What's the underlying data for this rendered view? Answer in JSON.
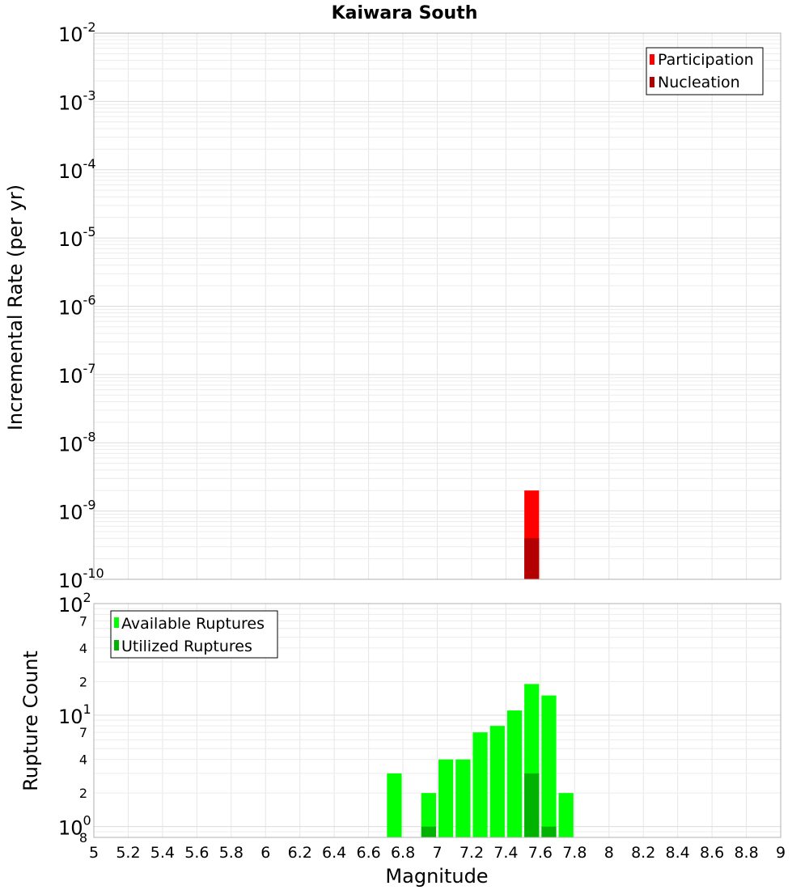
{
  "chart_data": [
    {
      "type": "bar",
      "title": "Kaiwara South",
      "xlabel": "",
      "ylabel": "Incremental Rate (per yr)",
      "yscale": "log",
      "ylim": [
        1e-10,
        0.01
      ],
      "xlim": [
        5,
        9
      ],
      "grid": true,
      "legend_position": "top-right",
      "y_ticks": [
        {
          "base": "10",
          "exp": "-2"
        },
        {
          "base": "10",
          "exp": "-3"
        },
        {
          "base": "10",
          "exp": "-4"
        },
        {
          "base": "10",
          "exp": "-5"
        },
        {
          "base": "10",
          "exp": "-6"
        },
        {
          "base": "10",
          "exp": "-7"
        },
        {
          "base": "10",
          "exp": "-8"
        },
        {
          "base": "10",
          "exp": "-9"
        },
        {
          "base": "10",
          "exp": "-10"
        }
      ],
      "series": [
        {
          "name": "Participation",
          "color": "#ff0000",
          "x": [
            7.55
          ],
          "values": [
            2e-09
          ]
        },
        {
          "name": "Nucleation",
          "color": "#b30000",
          "x": [
            7.55
          ],
          "values": [
            4e-10
          ]
        }
      ]
    },
    {
      "type": "bar",
      "title": "",
      "xlabel": "Magnitude",
      "ylabel": "Rupture Count",
      "yscale": "log",
      "ylim": [
        0.8,
        100
      ],
      "xlim": [
        5,
        9
      ],
      "grid": true,
      "legend_position": "top-left",
      "x_ticks": [
        "5",
        "5.2",
        "5.4",
        "5.6",
        "5.8",
        "6",
        "6.2",
        "6.4",
        "6.6",
        "6.8",
        "7",
        "7.2",
        "7.4",
        "7.6",
        "7.8",
        "8",
        "8.2",
        "8.4",
        "8.6",
        "8.8",
        "9"
      ],
      "y_major_ticks": [
        {
          "base": "10",
          "exp": "2",
          "value": 100
        },
        {
          "base": "10",
          "exp": "1",
          "value": 10
        },
        {
          "base": "10",
          "exp": "0",
          "value": 1
        }
      ],
      "y_minor_ticks": [
        {
          "label": "7",
          "value": 70
        },
        {
          "label": "4",
          "value": 40
        },
        {
          "label": "2",
          "value": 20
        },
        {
          "label": "7",
          "value": 7
        },
        {
          "label": "4",
          "value": 4
        },
        {
          "label": "2",
          "value": 2
        },
        {
          "label": "8",
          "value": 0.8
        }
      ],
      "series": [
        {
          "name": "Available Ruptures",
          "color": "#00ff00",
          "x": [
            6.75,
            6.95,
            7.05,
            7.15,
            7.25,
            7.35,
            7.45,
            7.55,
            7.65,
            7.75
          ],
          "values": [
            3,
            2,
            4,
            4,
            7,
            8,
            11,
            19,
            15,
            2
          ]
        },
        {
          "name": "Utilized Ruptures",
          "color": "#00b300",
          "x": [
            6.95,
            7.55,
            7.65
          ],
          "values": [
            1,
            3,
            1
          ]
        }
      ]
    }
  ]
}
